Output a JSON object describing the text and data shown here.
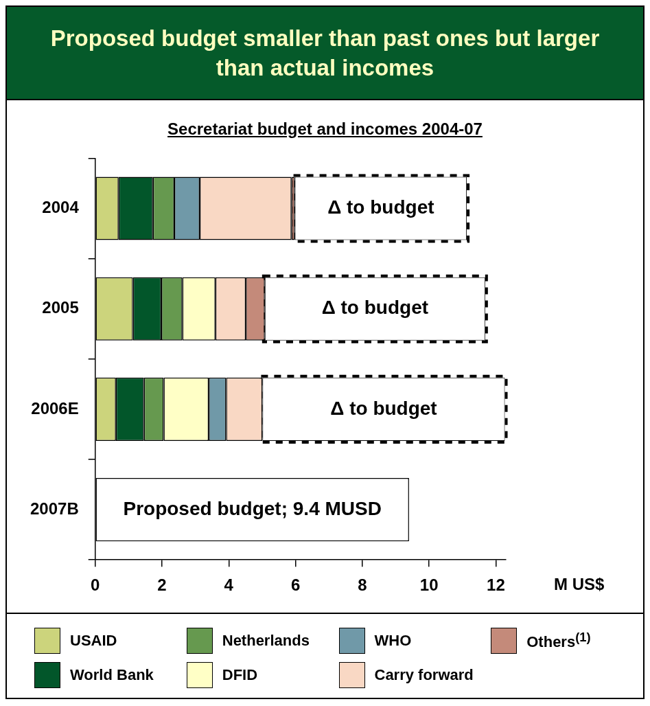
{
  "chart_data": {
    "type": "bar",
    "orientation": "horizontal",
    "stacked": true,
    "title": "Proposed budget smaller than past ones but larger than actual incomes",
    "subtitle": "Secretariat budget and incomes 2004-07",
    "xlabel": "M US$",
    "categories": [
      "2004",
      "2005",
      "2006E",
      "2007B"
    ],
    "series": [
      {
        "name": "USAID",
        "color": "#ccd47c",
        "values": [
          0.7,
          1.13,
          0.62,
          null
        ]
      },
      {
        "name": "World Bank",
        "color": "#02562a",
        "values": [
          1.03,
          0.85,
          0.84,
          null
        ]
      },
      {
        "name": "Netherlands",
        "color": "#66994f",
        "values": [
          0.64,
          0.63,
          0.59,
          null
        ]
      },
      {
        "name": "DFID",
        "color": "#ffffc6",
        "values": [
          null,
          0.99,
          1.35,
          null
        ]
      },
      {
        "name": "WHO",
        "color": "#7099a8",
        "values": [
          0.76,
          null,
          0.52,
          null
        ]
      },
      {
        "name": "Carry forward",
        "color": "#f9d8c4",
        "values": [
          2.75,
          0.91,
          1.09,
          null
        ]
      },
      {
        "name": "Others$^{(1)}$",
        "color": "#c48a7a",
        "values": [
          0.1,
          0.57,
          null,
          null
        ]
      },
      {
        "color": "#ffffff",
        "line_style": "dashed",
        "values": [
          5.15,
          6.6,
          7.26,
          null
        ],
        "value_labels": [
          "Δ to budget",
          "Δ to budget",
          "Δ to budget",
          null
        ]
      },
      {
        "color": "#ffffff",
        "line_style": "solid",
        "values": [
          null,
          null,
          null,
          9.4
        ],
        "value_labels": [
          null,
          null,
          null,
          "Proposed budget; 9.4 MUSD"
        ]
      }
    ],
    "xlim": [
      0,
      12.3
    ],
    "xticks": [
      0,
      2,
      4,
      6,
      8,
      10,
      12
    ],
    "grid": false,
    "legend": "bottom"
  }
}
